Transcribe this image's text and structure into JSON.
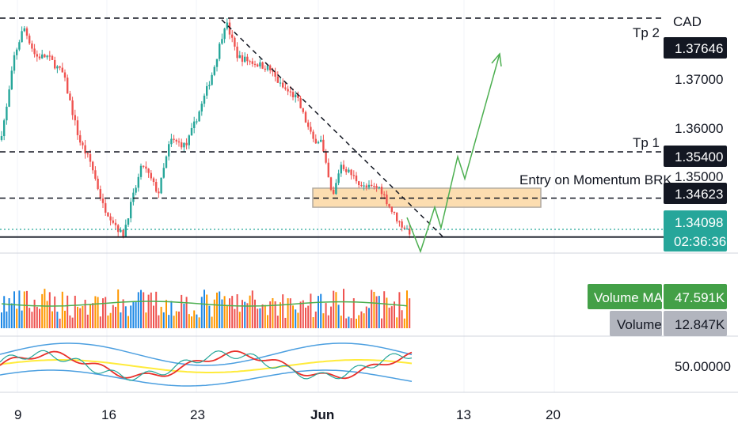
{
  "chart_data": {
    "type": "candlestick",
    "currency": "CAD",
    "price_range": [
      1.337,
      1.3795
    ],
    "y_ticks": [
      "1.37000",
      "1.36000",
      "1.35000"
    ],
    "price_levels": [
      {
        "label": "Tp 2",
        "value": "1.37646",
        "style": "dashed",
        "tag_color": "#131722"
      },
      {
        "label": "Tp 1",
        "value": "1.35400",
        "style": "dashed",
        "tag_color": "#131722"
      },
      {
        "label": "Entry on Momentum BRK",
        "value": "1.34623",
        "style": "dashed",
        "tag_color": "#131722"
      },
      {
        "label": "",
        "value": "1.34098",
        "style": "dotted",
        "tag_color": "#26a69a",
        "countdown": "02:36:36"
      }
    ],
    "support_line": 1.3397,
    "entry_zone": {
      "from": 1.3447,
      "to": 1.3479
    },
    "x_ticks": [
      "9",
      "16",
      "23",
      "Jun",
      "13",
      "20"
    ],
    "candles_ohlc": [],
    "volume": {
      "ma_label": "Volume MA",
      "ma_value": "47.591K",
      "label": "Volume",
      "value": "12.847K"
    },
    "oscillator": {
      "level": "50.00000"
    },
    "colors": {
      "up": "#26a69a",
      "down": "#ef5350",
      "projection": "#4caf50",
      "zone": "#fbd7a2",
      "ma": "#4caf50",
      "rsi": "#e9302a",
      "bands": "#4c9fe0",
      "signal": "#ffeb3b"
    }
  }
}
